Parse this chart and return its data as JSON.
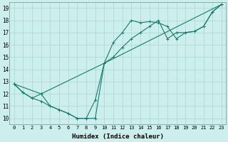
{
  "xlabel": "Humidex (Indice chaleur)",
  "background_color": "#cceeed",
  "grid_color": "#aad6d2",
  "line_color": "#1a7a6e",
  "xlim": [
    -0.5,
    23.5
  ],
  "ylim": [
    9.5,
    19.5
  ],
  "xticks": [
    0,
    1,
    2,
    3,
    4,
    5,
    6,
    7,
    8,
    9,
    10,
    11,
    12,
    13,
    14,
    15,
    16,
    17,
    18,
    19,
    20,
    21,
    22,
    23
  ],
  "yticks": [
    10,
    11,
    12,
    13,
    14,
    15,
    16,
    17,
    18,
    19
  ],
  "line1_x": [
    0,
    1,
    2,
    3,
    4,
    5,
    6,
    7,
    8,
    9,
    10,
    11,
    12,
    13,
    14,
    15,
    16,
    17,
    18,
    19,
    20,
    21,
    22,
    23
  ],
  "line1_y": [
    12.8,
    12.1,
    11.65,
    12.0,
    11.0,
    10.7,
    10.4,
    10.0,
    10.0,
    11.5,
    14.5,
    16.2,
    17.0,
    18.0,
    17.8,
    17.9,
    17.8,
    17.5,
    16.5,
    17.0,
    17.1,
    17.5,
    18.7,
    19.3
  ],
  "line2_x": [
    0,
    3,
    10,
    23
  ],
  "line2_y": [
    12.8,
    12.0,
    14.5,
    19.3
  ],
  "line3_x": [
    0,
    1,
    2,
    3,
    4,
    5,
    6,
    7,
    8,
    9,
    10,
    11,
    12,
    13,
    14,
    15,
    16,
    17,
    18,
    19,
    20,
    21,
    22,
    23
  ],
  "line3_y": [
    12.8,
    12.1,
    11.65,
    11.4,
    11.0,
    10.7,
    10.4,
    10.0,
    10.0,
    10.0,
    14.5,
    15.0,
    15.8,
    16.5,
    17.0,
    17.5,
    18.0,
    16.5,
    17.0,
    17.0,
    17.1,
    17.5,
    18.7,
    19.3
  ],
  "marker": "+",
  "tick_fontsize": 5.0,
  "xlabel_fontsize": 6.5
}
